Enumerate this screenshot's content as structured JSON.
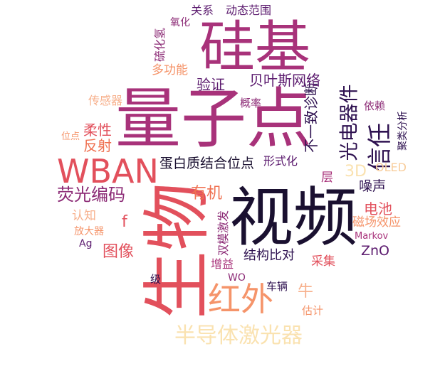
{
  "colors": {
    "black": "#1a1030",
    "navy": "#2e1150",
    "purple": "#5b1a6e",
    "plum": "#8c2b76",
    "magenta": "#a8327a",
    "pinkred": "#d0405e",
    "red": "#e2505c",
    "coral": "#ef7050",
    "orange": "#f5946a",
    "peach": "#f7b08c",
    "light": "#f8cd9c",
    "pale": "#fae2b0"
  },
  "words": {
    "shiji": "硅基",
    "liangzidian": "量子点",
    "shipin": "视频",
    "shengwu": "生物",
    "wban": "WBAN",
    "hongwai": "红外",
    "bandao": "半导体激光器",
    "xinren": "信任",
    "guangdian": "光电器件",
    "danbai": "蛋白质结合位点",
    "yingguang": "荧光编码",
    "beiyesi": "贝叶斯网络",
    "buyizhi": "不一致诊断",
    "yanzheng": "验证",
    "duogongneng": "多功能",
    "liuhuaqing": "硫化氢",
    "yanghua": "氧化",
    "guanxi": "关系",
    "dongtai": "动态范围",
    "gailv": "概率",
    "yilai": "依赖",
    "julei": "聚类分析",
    "chuanganqi": "传感器",
    "weidian": "位点",
    "rouxing": "柔性",
    "fanshe": "反射",
    "xingshihua": "形式化",
    "ceng": "层",
    "threeD": "3D",
    "oled": "OLED",
    "zaosheng": "噪声",
    "youji": "有机",
    "dianchi": "电池",
    "cichang": "磁场效应",
    "renzhi": "认知",
    "f": "f",
    "fangdaqi": "放大器",
    "ag": "Ag",
    "tuxiang": "图像",
    "markov": "Markov",
    "zno": "ZnO",
    "shuangmo": "双模激发",
    "jiegou": "结构比对",
    "zengyi": "增益",
    "caiji": "采集",
    "wo": "WO",
    "ji": "级",
    "cheliang": "车辆",
    "niu": "牛",
    "guji": "估计"
  }
}
